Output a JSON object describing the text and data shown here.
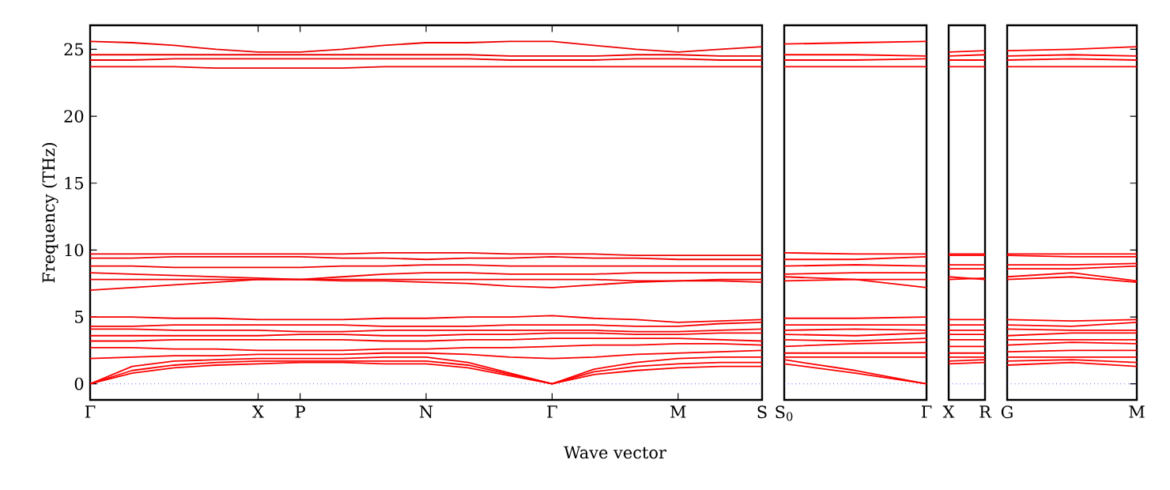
{
  "chart_data": [
    {
      "type": "line",
      "ylabel": "Frequency (THz)",
      "xlabel": "Wave vector",
      "ylim": [
        -1.2,
        26.8
      ],
      "yticks": [
        0,
        5,
        10,
        15,
        20,
        25
      ],
      "categories": [
        "Γ",
        null,
        null,
        null,
        "X",
        "P",
        null,
        null,
        "N",
        null,
        null,
        "Γ",
        null,
        null,
        "M",
        null,
        "S"
      ],
      "ref_lines": [
        {
          "axis": "y",
          "value": 0,
          "color": "#0000ff",
          "line_style": "dotted"
        }
      ],
      "series": [
        {
          "color": "#ff0000",
          "values": [
            0,
            0.8,
            1.2,
            1.4,
            1.5,
            1.6,
            1.6,
            1.5,
            1.5,
            1.2,
            0.6,
            0,
            0.7,
            1.0,
            1.2,
            1.3,
            1.3
          ]
        },
        {
          "color": "#fe0000",
          "values": [
            0,
            1.0,
            1.4,
            1.6,
            1.7,
            1.7,
            1.7,
            1.7,
            1.7,
            1.4,
            0.7,
            0,
            0.9,
            1.3,
            1.5,
            1.6,
            1.6
          ]
        },
        {
          "color": "#fd0000",
          "values": [
            0,
            1.3,
            1.7,
            1.8,
            1.9,
            1.9,
            1.9,
            2.0,
            2.0,
            1.6,
            0.8,
            0,
            1.1,
            1.6,
            1.9,
            2.0,
            2.0
          ]
        },
        {
          "color": "#fc0000",
          "values": [
            1.9,
            2.0,
            2.1,
            2.1,
            2.2,
            2.2,
            2.2,
            2.3,
            2.3,
            2.2,
            2.0,
            1.9,
            2.0,
            2.2,
            2.3,
            2.4,
            2.5
          ]
        },
        {
          "color": "#fb0000",
          "values": [
            2.7,
            2.7,
            2.6,
            2.6,
            2.5,
            2.5,
            2.5,
            2.6,
            2.6,
            2.7,
            2.7,
            2.8,
            2.9,
            2.9,
            3.0,
            3.0,
            2.9
          ]
        },
        {
          "color": "#fa0000",
          "values": [
            3.2,
            3.2,
            3.3,
            3.3,
            3.3,
            3.3,
            3.3,
            3.2,
            3.2,
            3.3,
            3.3,
            3.4,
            3.4,
            3.4,
            3.4,
            3.3,
            3.2
          ]
        },
        {
          "color": "#f90000",
          "values": [
            3.6,
            3.6,
            3.6,
            3.6,
            3.6,
            3.7,
            3.7,
            3.6,
            3.6,
            3.7,
            3.7,
            3.8,
            3.8,
            3.7,
            3.7,
            3.8,
            3.8
          ]
        },
        {
          "color": "#f80000",
          "values": [
            4.1,
            4.1,
            4.0,
            4.0,
            4.0,
            3.9,
            3.9,
            4.0,
            4.0,
            4.0,
            4.0,
            4.0,
            4.0,
            3.9,
            3.9,
            4.0,
            4.1
          ]
        },
        {
          "color": "#f70000",
          "values": [
            4.3,
            4.3,
            4.4,
            4.4,
            4.4,
            4.4,
            4.4,
            4.3,
            4.3,
            4.3,
            4.4,
            4.4,
            4.4,
            4.3,
            4.3,
            4.5,
            4.6
          ]
        },
        {
          "color": "#f60000",
          "values": [
            5.0,
            5.0,
            4.9,
            4.9,
            4.8,
            4.8,
            4.8,
            4.9,
            4.9,
            5.0,
            5.0,
            5.1,
            4.9,
            4.8,
            4.6,
            4.7,
            4.8
          ]
        },
        {
          "color": "#f50000",
          "values": [
            7.0,
            7.2,
            7.4,
            7.6,
            7.8,
            7.8,
            7.7,
            7.7,
            7.6,
            7.5,
            7.3,
            7.2,
            7.4,
            7.6,
            7.7,
            7.7,
            7.6
          ]
        },
        {
          "color": "#f40000",
          "values": [
            7.8,
            7.8,
            7.8,
            7.8,
            7.8,
            7.8,
            7.8,
            7.8,
            7.8,
            7.8,
            7.8,
            7.8,
            7.8,
            7.7,
            7.7,
            7.8,
            7.8
          ]
        },
        {
          "color": "#f30000",
          "values": [
            8.3,
            8.2,
            8.1,
            8.0,
            7.9,
            7.8,
            8.0,
            8.2,
            8.3,
            8.3,
            8.2,
            8.2,
            8.2,
            8.3,
            8.3,
            8.3,
            8.3
          ]
        },
        {
          "color": "#f20000",
          "values": [
            8.8,
            8.8,
            8.7,
            8.7,
            8.7,
            8.7,
            8.8,
            8.8,
            8.9,
            8.9,
            8.8,
            8.8,
            8.8,
            8.8,
            8.8,
            8.8,
            8.8
          ]
        },
        {
          "color": "#f10000",
          "values": [
            9.4,
            9.4,
            9.5,
            9.5,
            9.5,
            9.5,
            9.4,
            9.4,
            9.3,
            9.4,
            9.4,
            9.5,
            9.4,
            9.4,
            9.3,
            9.3,
            9.3
          ]
        },
        {
          "color": "#f00000",
          "values": [
            9.7,
            9.7,
            9.7,
            9.7,
            9.7,
            9.7,
            9.7,
            9.8,
            9.8,
            9.8,
            9.7,
            9.7,
            9.7,
            9.6,
            9.6,
            9.6,
            9.6
          ]
        },
        {
          "color": "#ef0000",
          "values": [
            23.7,
            23.7,
            23.7,
            23.6,
            23.6,
            23.6,
            23.6,
            23.7,
            23.7,
            23.7,
            23.7,
            23.7,
            23.7,
            23.7,
            23.7,
            23.7,
            23.7
          ]
        },
        {
          "color": "#ee0000",
          "values": [
            24.2,
            24.2,
            24.3,
            24.3,
            24.3,
            24.3,
            24.3,
            24.3,
            24.3,
            24.3,
            24.2,
            24.2,
            24.2,
            24.3,
            24.3,
            24.2,
            24.2
          ]
        },
        {
          "color": "#ed0000",
          "values": [
            24.6,
            24.6,
            24.6,
            24.6,
            24.6,
            24.6,
            24.6,
            24.6,
            24.6,
            24.6,
            24.5,
            24.5,
            24.5,
            24.6,
            24.6,
            24.5,
            24.5
          ]
        },
        {
          "color": "#ec0000",
          "values": [
            25.6,
            25.5,
            25.3,
            25.0,
            24.8,
            24.8,
            25.0,
            25.3,
            25.5,
            25.5,
            25.6,
            25.6,
            25.3,
            25.0,
            24.8,
            25.0,
            25.2
          ]
        }
      ]
    },
    {
      "type": "line",
      "ylim": [
        -1.2,
        26.8
      ],
      "yticks": [
        0,
        5,
        10,
        15,
        20,
        25
      ],
      "tick_labels": "x",
      "categories": [
        "S$_{0}$",
        null,
        "Γ"
      ],
      "ref_lines": [
        {
          "axis": "y",
          "value": 0,
          "color": "#0000ff",
          "line_style": "dotted"
        }
      ],
      "series": [
        {
          "color": "#ff0000",
          "values": [
            1.5,
            0.8,
            0
          ]
        },
        {
          "color": "#ff0000",
          "values": [
            1.8,
            1.0,
            0
          ]
        },
        {
          "color": "#ff0000",
          "values": [
            2.0,
            2.0,
            2.0
          ]
        },
        {
          "color": "#ff0000",
          "values": [
            2.3,
            2.3,
            2.3
          ]
        },
        {
          "color": "#ff0000",
          "values": [
            2.8,
            3.0,
            3.1
          ]
        },
        {
          "color": "#ff0000",
          "values": [
            3.3,
            3.2,
            3.4
          ]
        },
        {
          "color": "#ff0000",
          "values": [
            3.7,
            3.6,
            3.8
          ]
        },
        {
          "color": "#ff0000",
          "values": [
            4.0,
            4.1,
            4.0
          ]
        },
        {
          "color": "#ff0000",
          "values": [
            4.4,
            4.4,
            4.4
          ]
        },
        {
          "color": "#ff0000",
          "values": [
            4.9,
            4.9,
            5.0
          ]
        },
        {
          "color": "#ff0000",
          "values": [
            8.0,
            7.8,
            7.2
          ]
        },
        {
          "color": "#ff0000",
          "values": [
            7.7,
            7.8,
            7.8
          ]
        },
        {
          "color": "#ff0000",
          "values": [
            8.2,
            8.3,
            8.3
          ]
        },
        {
          "color": "#ff0000",
          "values": [
            8.8,
            8.9,
            8.8
          ]
        },
        {
          "color": "#ff0000",
          "values": [
            9.3,
            9.3,
            9.5
          ]
        },
        {
          "color": "#ff0000",
          "values": [
            9.8,
            9.7,
            9.7
          ]
        },
        {
          "color": "#ff0000",
          "values": [
            23.7,
            23.7,
            23.7
          ]
        },
        {
          "color": "#ff0000",
          "values": [
            24.2,
            24.2,
            24.3
          ]
        },
        {
          "color": "#ff0000",
          "values": [
            24.6,
            24.6,
            24.5
          ]
        },
        {
          "color": "#ff0000",
          "values": [
            25.4,
            25.5,
            25.6
          ]
        }
      ]
    },
    {
      "type": "line",
      "ylim": [
        -1.2,
        26.8
      ],
      "yticks": [
        0,
        5,
        10,
        15,
        20,
        25
      ],
      "tick_labels": "x",
      "categories": [
        "X",
        "R"
      ],
      "ref_lines": [
        {
          "axis": "y",
          "value": 0,
          "color": "#0000ff",
          "line_style": "dotted"
        }
      ],
      "series": [
        {
          "color": "#ff0000",
          "values": [
            1.5,
            1.6
          ]
        },
        {
          "color": "#ff0000",
          "values": [
            1.7,
            1.8
          ]
        },
        {
          "color": "#ff0000",
          "values": [
            2.0,
            2.0
          ]
        },
        {
          "color": "#ff0000",
          "values": [
            2.3,
            2.3
          ]
        },
        {
          "color": "#ff0000",
          "values": [
            2.8,
            2.8
          ]
        },
        {
          "color": "#ff0000",
          "values": [
            3.3,
            3.3
          ]
        },
        {
          "color": "#ff0000",
          "values": [
            3.7,
            3.7
          ]
        },
        {
          "color": "#ff0000",
          "values": [
            4.0,
            4.0
          ]
        },
        {
          "color": "#ff0000",
          "values": [
            4.4,
            4.4
          ]
        },
        {
          "color": "#ff0000",
          "values": [
            4.8,
            4.8
          ]
        },
        {
          "color": "#ff0000",
          "values": [
            7.8,
            7.9
          ]
        },
        {
          "color": "#ff0000",
          "values": [
            8.0,
            7.8
          ]
        },
        {
          "color": "#ff0000",
          "values": [
            8.6,
            8.6
          ]
        },
        {
          "color": "#ff0000",
          "values": [
            8.9,
            8.9
          ]
        },
        {
          "color": "#ff0000",
          "values": [
            9.6,
            9.6
          ]
        },
        {
          "color": "#ff0000",
          "values": [
            9.7,
            9.7
          ]
        },
        {
          "color": "#ff0000",
          "values": [
            23.7,
            23.7
          ]
        },
        {
          "color": "#ff0000",
          "values": [
            24.2,
            24.2
          ]
        },
        {
          "color": "#ff0000",
          "values": [
            24.5,
            24.6
          ]
        },
        {
          "color": "#ff0000",
          "values": [
            24.8,
            24.9
          ]
        }
      ]
    },
    {
      "type": "line",
      "ylim": [
        -1.2,
        26.8
      ],
      "yticks": [
        0,
        5,
        10,
        15,
        20,
        25
      ],
      "tick_labels": "x",
      "categories": [
        "G",
        null,
        "M"
      ],
      "ref_lines": [
        {
          "axis": "y",
          "value": 0,
          "color": "#0000ff",
          "line_style": "dotted"
        }
      ],
      "series": [
        {
          "color": "#ff0000",
          "values": [
            1.4,
            1.6,
            1.3
          ]
        },
        {
          "color": "#ff0000",
          "values": [
            1.7,
            1.8,
            1.6
          ]
        },
        {
          "color": "#ff0000",
          "values": [
            2.0,
            2.0,
            2.0
          ]
        },
        {
          "color": "#ff0000",
          "values": [
            2.4,
            2.5,
            2.5
          ]
        },
        {
          "color": "#ff0000",
          "values": [
            2.9,
            3.1,
            3.0
          ]
        },
        {
          "color": "#ff0000",
          "values": [
            3.3,
            3.3,
            3.3
          ]
        },
        {
          "color": "#ff0000",
          "values": [
            3.6,
            3.8,
            3.8
          ]
        },
        {
          "color": "#ff0000",
          "values": [
            4.1,
            4.0,
            4.0
          ]
        },
        {
          "color": "#ff0000",
          "values": [
            4.4,
            4.3,
            4.6
          ]
        },
        {
          "color": "#ff0000",
          "values": [
            4.8,
            4.7,
            4.8
          ]
        },
        {
          "color": "#ff0000",
          "values": [
            7.8,
            8.0,
            7.6
          ]
        },
        {
          "color": "#ff0000",
          "values": [
            8.0,
            8.3,
            7.7
          ]
        },
        {
          "color": "#ff0000",
          "values": [
            8.6,
            8.6,
            8.8
          ]
        },
        {
          "color": "#ff0000",
          "values": [
            8.9,
            8.9,
            9.0
          ]
        },
        {
          "color": "#ff0000",
          "values": [
            9.6,
            9.5,
            9.5
          ]
        },
        {
          "color": "#ff0000",
          "values": [
            9.7,
            9.7,
            9.7
          ]
        },
        {
          "color": "#ff0000",
          "values": [
            23.7,
            23.7,
            23.7
          ]
        },
        {
          "color": "#ff0000",
          "values": [
            24.2,
            24.3,
            24.2
          ]
        },
        {
          "color": "#ff0000",
          "values": [
            24.5,
            24.6,
            24.5
          ]
        },
        {
          "color": "#ff0000",
          "values": [
            24.9,
            25.0,
            25.2
          ]
        }
      ]
    }
  ]
}
